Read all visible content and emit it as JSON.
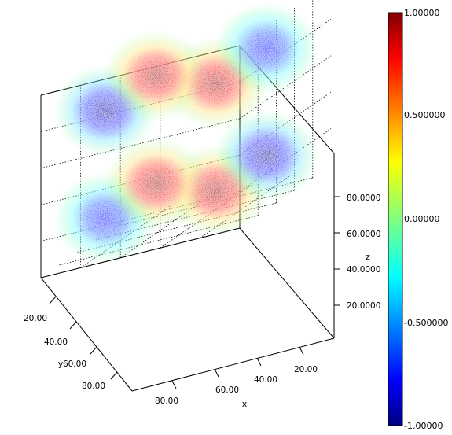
{
  "chart_data": {
    "type": "scatter3d",
    "title": "",
    "x_axis": {
      "label": "x",
      "ticks": [
        "20.00",
        "40.00",
        "60.00",
        "80.00"
      ]
    },
    "y_axis": {
      "label": "y",
      "ticks": [
        "20.00",
        "40.00",
        "60.00",
        "80.00"
      ]
    },
    "z_axis": {
      "label": "z",
      "ticks": [
        "20.0000",
        "40.0000",
        "60.0000",
        "80.0000"
      ]
    },
    "colorbar": {
      "ticks": [
        "1.00000",
        "0.500000",
        "0.00000",
        "-0.500000",
        "-1.00000"
      ],
      "range": [
        -1,
        1
      ],
      "colormap": "jet"
    },
    "blobs": [
      {
        "value": 0.9,
        "x": 75,
        "y": 75,
        "z": 22
      },
      {
        "value": -0.9,
        "x": 25,
        "y": 75,
        "z": 22
      },
      {
        "value": -0.7,
        "x": 75,
        "y": 25,
        "z": 22
      },
      {
        "value": 0.9,
        "x": 25,
        "y": 25,
        "z": 22
      },
      {
        "value": 0.9,
        "x": 75,
        "y": 75,
        "z": 75
      },
      {
        "value": -0.7,
        "x": 25,
        "y": 75,
        "z": 75
      },
      {
        "value": -0.9,
        "x": 75,
        "y": 25,
        "z": 75
      },
      {
        "value": 0.9,
        "x": 25,
        "y": 25,
        "z": 75
      }
    ]
  }
}
